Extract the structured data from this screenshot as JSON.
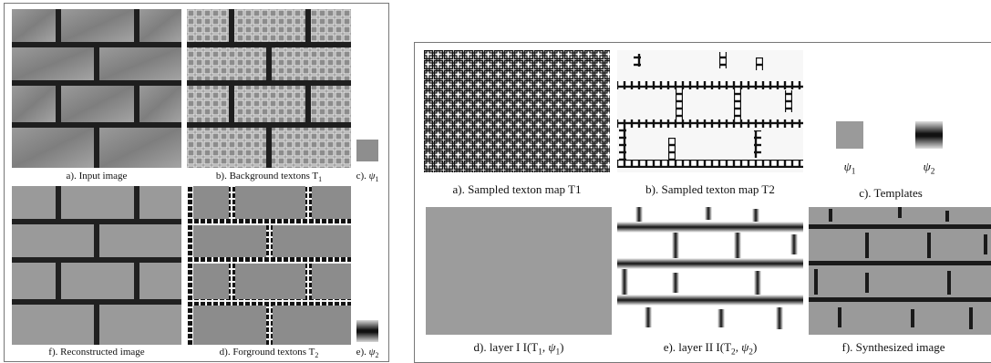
{
  "left_figure": {
    "captions": {
      "a": "a). Input image",
      "b": "b). Background textons T",
      "b_sub": "1",
      "c_prefix": "c). ",
      "c_symbol": "ψ",
      "c_sub": "1",
      "f": "f). Reconstructed image",
      "d": "d).  Forground textons T",
      "d_sub": "2",
      "e_prefix": "e). ",
      "e_symbol": "ψ",
      "e_sub": "2"
    }
  },
  "right_figure": {
    "captions": {
      "a": "a). Sampled texton map T1",
      "b": "b). Sampled texton map T2",
      "c": "c). Templates",
      "psi1_symbol": "ψ",
      "psi1_sub": "1",
      "psi2_symbol": "ψ",
      "psi2_sub": "2",
      "d_pre": "d). layer I   I(T",
      "d_sub1": "1",
      "d_mid": ", ",
      "d_sym": "ψ",
      "d_sub2": "1",
      "d_post": ")",
      "e_pre": "e). layer II   I(T",
      "e_sub1": "2",
      "e_mid": ", ",
      "e_sym": "ψ",
      "e_sub2": "2",
      "e_post": ")",
      "f": "f). Synthesized image"
    }
  },
  "colors": {
    "brick_gray": "#8a8a8a",
    "mortar": "#1e1e1e",
    "template_gray": "#9a9a9a",
    "layer1_gray": "#9c9c9c"
  }
}
